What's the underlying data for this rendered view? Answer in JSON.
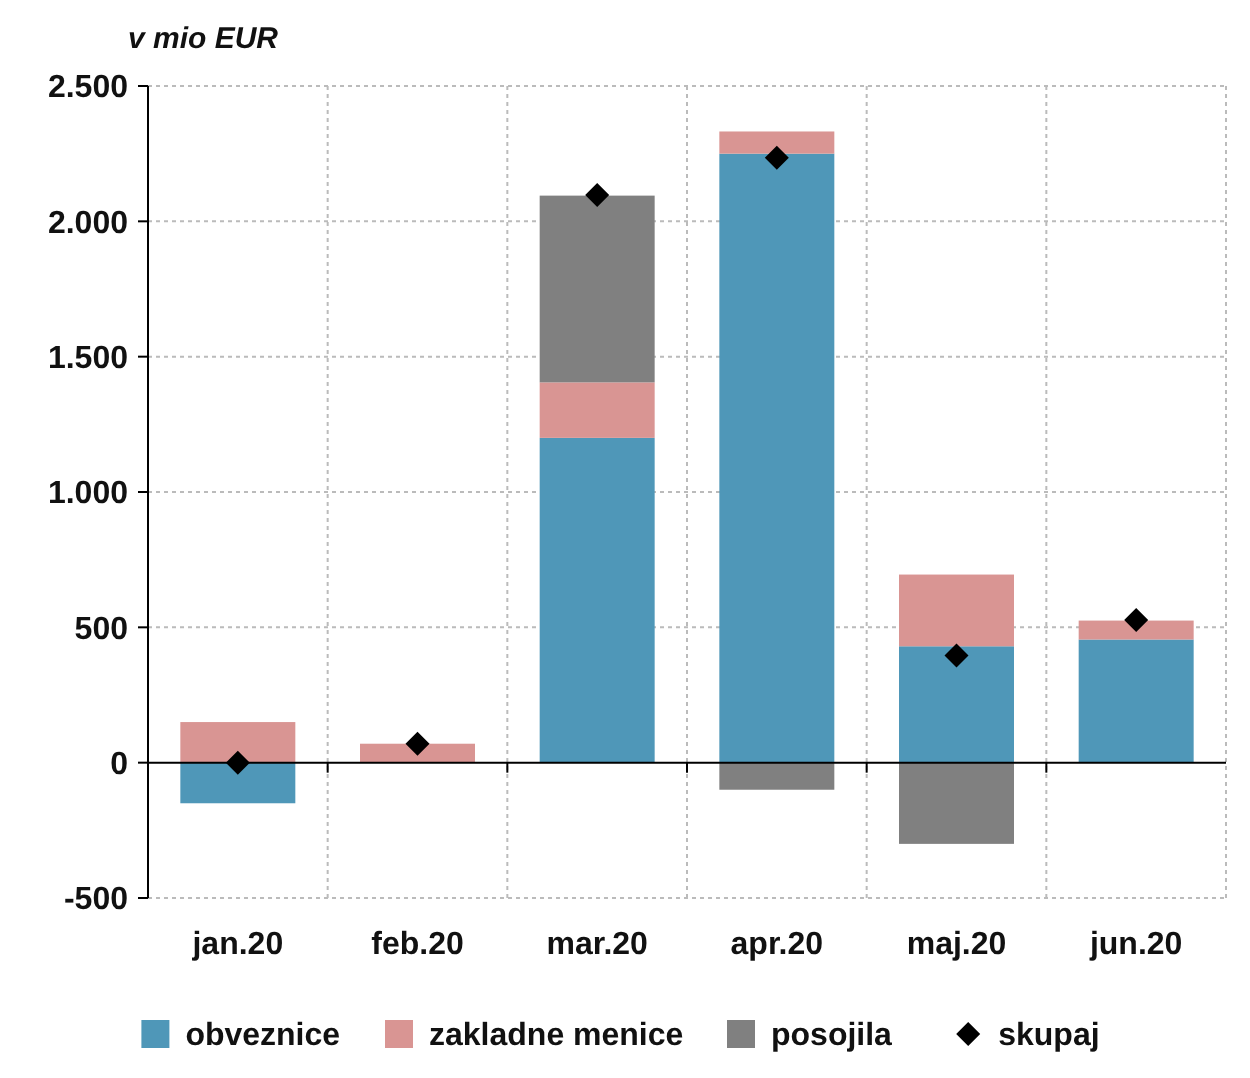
{
  "chart_data": {
    "type": "bar",
    "stacked": true,
    "ylabel": "v mio EUR",
    "categories": [
      "jan.20",
      "feb.20",
      "mar.20",
      "apr.20",
      "maj.20",
      "jun.20"
    ],
    "series": [
      {
        "name": "obveznice",
        "color": "#4f97b8",
        "values": [
          -150,
          0,
          1200,
          2250,
          430,
          455
        ]
      },
      {
        "name": "zakladne menice",
        "color": "#d99593",
        "values": [
          150,
          70,
          205,
          82,
          265,
          70
        ]
      },
      {
        "name": "posojila",
        "color": "#808080",
        "values": [
          0,
          0,
          690,
          -100,
          -300,
          0
        ]
      },
      {
        "name": "skupaj",
        "type": "scatter",
        "marker": "diamond",
        "color": "#000000",
        "values": [
          0,
          70,
          2097,
          2235,
          396,
          527
        ]
      }
    ],
    "ylim": [
      -500,
      2500
    ],
    "yticks": [
      {
        "value": -500,
        "label": "-500"
      },
      0,
      500,
      {
        "value": 1000,
        "label": "1.000"
      },
      {
        "value": 1500,
        "label": "1.500"
      },
      {
        "value": 2000,
        "label": "2.000"
      },
      {
        "value": 2500,
        "label": "2.500"
      }
    ],
    "grid": true,
    "legend": "bottom"
  }
}
